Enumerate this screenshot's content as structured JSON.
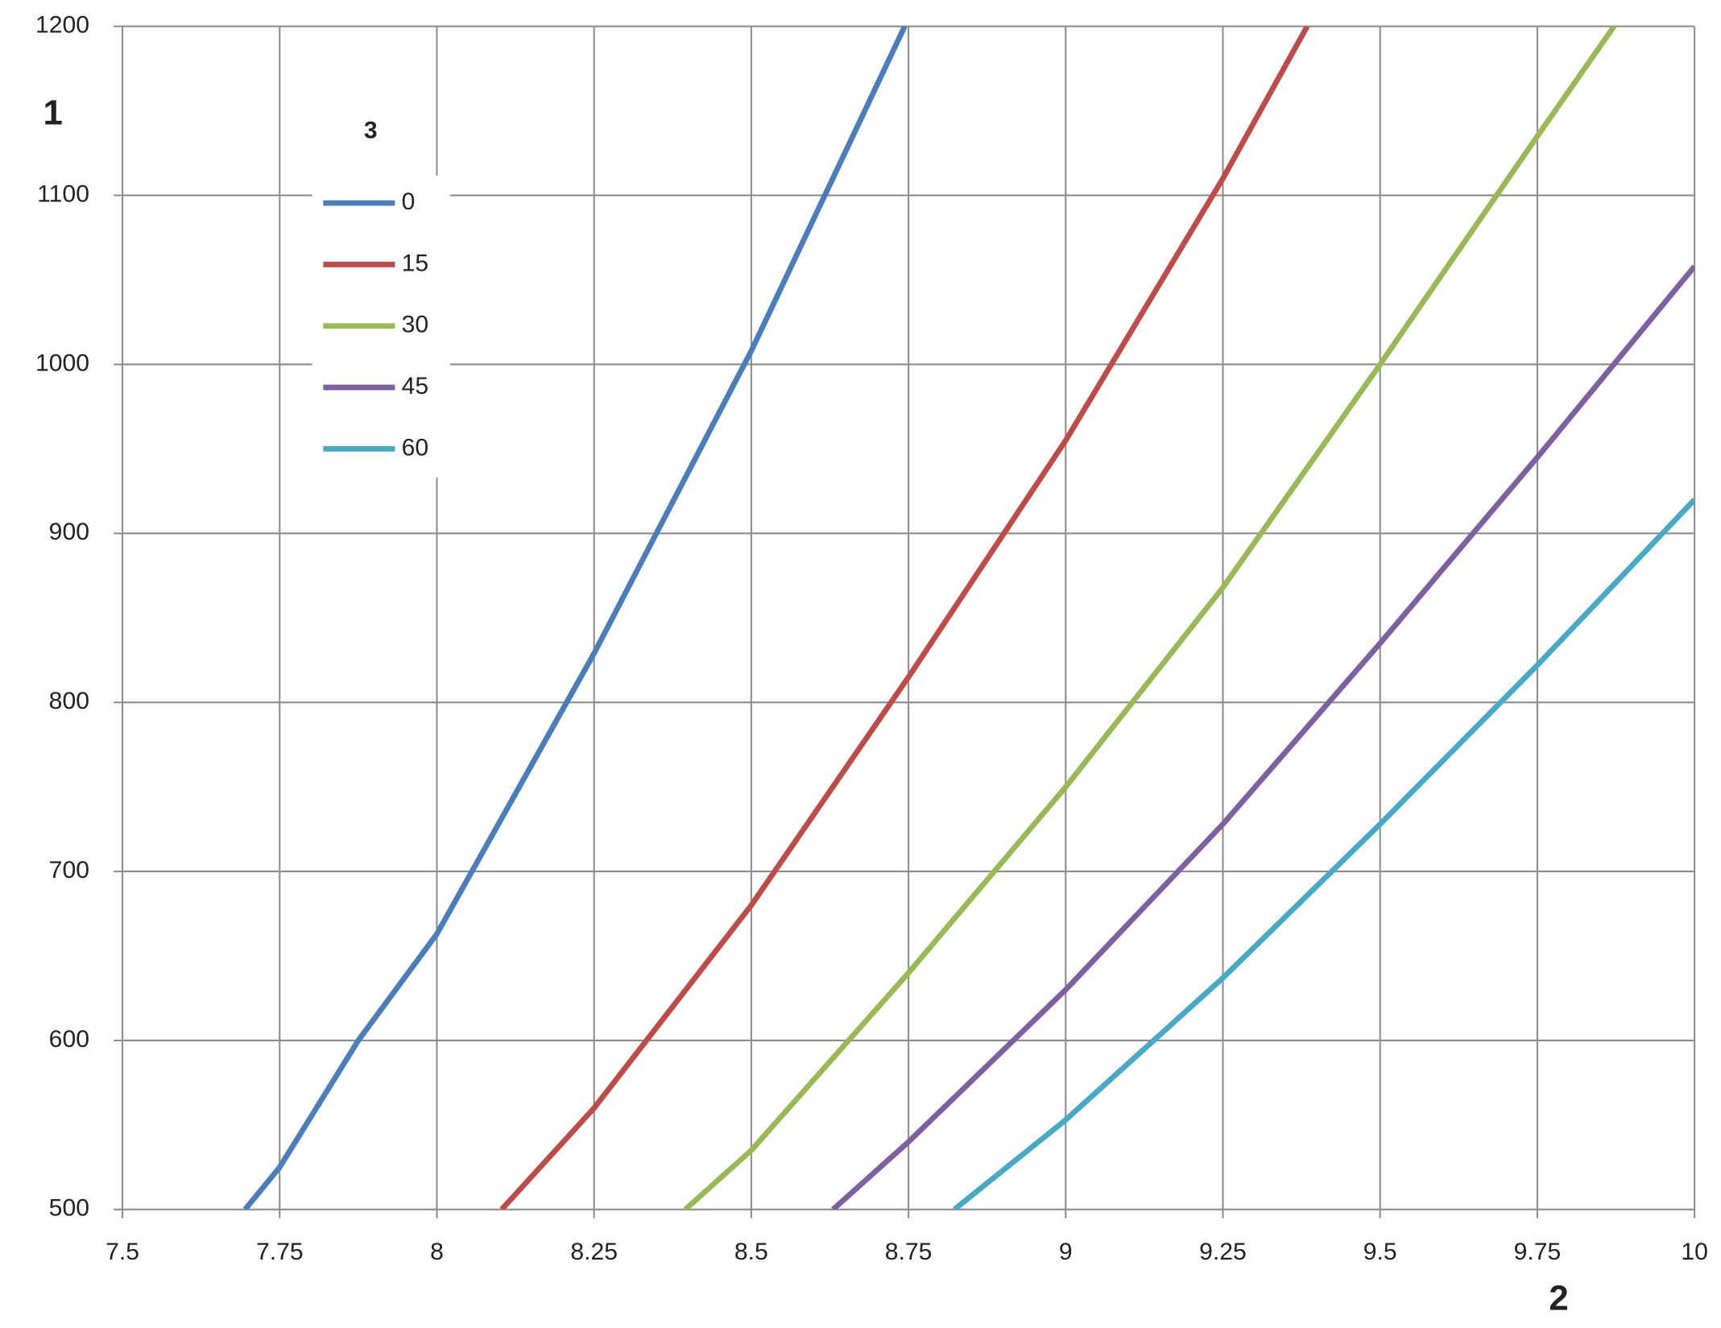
{
  "chart_data": {
    "type": "line",
    "y_label": "1",
    "x_label": "2",
    "legend_title": "3",
    "legend": "upper left",
    "grid": true,
    "xlim": [
      7.5,
      10
    ],
    "xticks": [
      7.5,
      7.75,
      8,
      8.25,
      8.5,
      8.75,
      9,
      9.25,
      9.5,
      9.75,
      10
    ],
    "ylim": [
      500,
      1200
    ],
    "yticks": [
      500,
      600,
      700,
      800,
      900,
      1000,
      1100,
      1200
    ],
    "series": [
      {
        "name": "0",
        "color": "#4a7ebb",
        "x": [
          7.695,
          7.75,
          7.875,
          8,
          8.25,
          8.349,
          8.5,
          8.744
        ],
        "values": [
          500,
          525,
          600,
          663,
          829,
          900,
          1008,
          1200
        ]
      },
      {
        "name": "15",
        "color": "#be4b48",
        "x": [
          8.103,
          8.25,
          8.5,
          8.75,
          9,
          9.25,
          9.384
        ],
        "values": [
          500,
          560,
          680,
          815,
          955,
          1110,
          1200
        ]
      },
      {
        "name": "30",
        "color": "#98b954",
        "x": [
          8.395,
          8.5,
          8.75,
          9,
          9.25,
          9.5,
          9.75,
          9.872
        ],
        "values": [
          500,
          535,
          640,
          750,
          868,
          1000,
          1135,
          1200
        ]
      },
      {
        "name": "45",
        "color": "#7d60a0",
        "x": [
          8.63,
          8.75,
          9,
          9.25,
          9.5,
          9.75,
          10
        ],
        "values": [
          500,
          540,
          630,
          728,
          835,
          945,
          1058
        ]
      },
      {
        "name": "60",
        "color": "#46aac5",
        "x": [
          8.823,
          9,
          9.25,
          9.5,
          9.75,
          10
        ],
        "values": [
          500,
          553,
          637,
          728,
          822,
          920
        ]
      }
    ]
  }
}
